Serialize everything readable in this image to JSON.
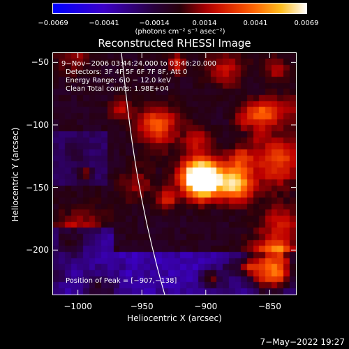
{
  "colorbar": {
    "ticks": [
      "−0.0069",
      "−0.0041",
      "−0.0014",
      "0.0014",
      "0.0041",
      "0.0069"
    ],
    "units": "(photons cm⁻² s⁻¹ asec⁻²)"
  },
  "chart_data": {
    "type": "heatmap",
    "title": "Reconstructed RHESSI Image",
    "xlabel": "Heliocentric X (arcsec)",
    "ylabel": "Heliocentric Y (arcsec)",
    "xlim": [
      -1020,
      -830
    ],
    "ylim": [
      -235,
      -42
    ],
    "xticks": [
      -1000,
      -950,
      -900,
      -850
    ],
    "xtick_labels": [
      "−1000",
      "−950",
      "−900",
      "−850"
    ],
    "yticks": [
      -50,
      -100,
      -150,
      -200
    ],
    "ytick_labels": [
      "−50",
      "−100",
      "−150",
      "−200"
    ],
    "colorbar_range": [
      -0.0069,
      0.0069
    ],
    "peak": [
      -907,
      -138
    ],
    "annotations": [
      "9−Nov−2006 03:44:24.000 to 03:46:20.000",
      "Detectors: 3F 4F 5F 6F 7F 8F, Att 0",
      "Energy Range: 6.0 − 12.0 keV",
      "Clean     Total counts: 1.98E+04",
      "Position of Peak = [−907,−138]"
    ]
  },
  "footer": {
    "timestamp": "7−May−2022 19:27"
  }
}
